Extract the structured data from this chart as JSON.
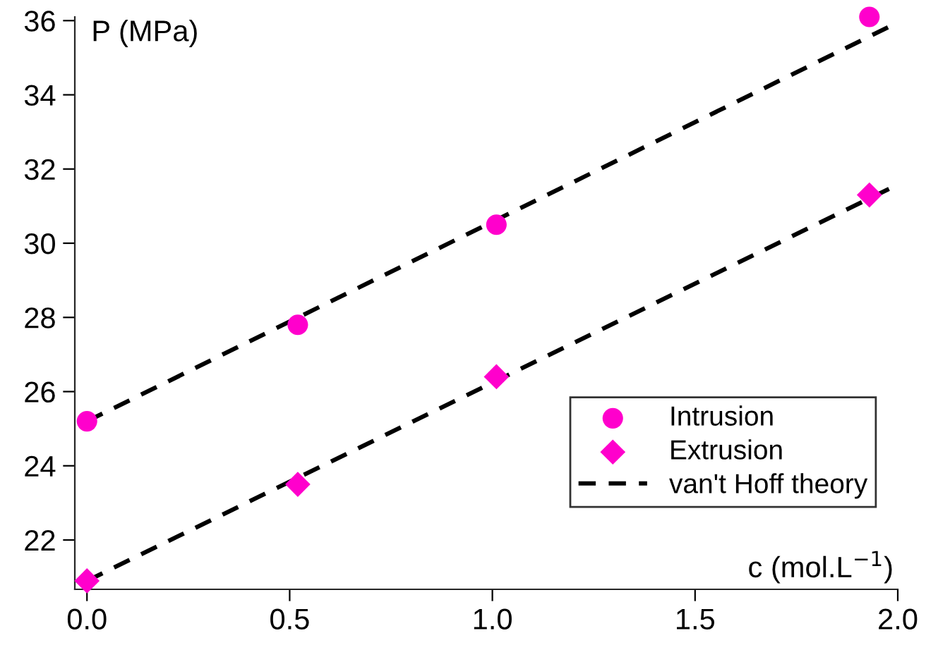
{
  "chart_data": {
    "type": "scatter",
    "xlabel": "c (mol.L$^{−1}$)",
    "ylabel": "P (MPa)",
    "xlim": [
      -0.03,
      2.0
    ],
    "xticks": [
      {
        "value": 0,
        "label": "0.0"
      },
      0.5,
      {
        "value": 1,
        "label": "1.0"
      },
      1.5,
      {
        "value": 2,
        "label": "2.0"
      }
    ],
    "ylim": [
      20.67,
      36.1
    ],
    "yticks": [
      22,
      24,
      26,
      28,
      30,
      32,
      34,
      36
    ],
    "grid": false,
    "legend": "bottom right",
    "series": [
      {
        "name": "Intrusion",
        "marker": "circle",
        "color": "#ff00cc",
        "x": [
          0.0,
          0.52,
          1.01,
          1.93
        ],
        "values": [
          25.2,
          27.8,
          30.5,
          36.1
        ]
      },
      {
        "name": "Extrusion",
        "marker": "diamond",
        "color": "#ff00cc",
        "x": [
          0.0,
          0.52,
          1.01,
          1.93
        ],
        "values": [
          20.9,
          23.5,
          26.4,
          31.3
        ]
      },
      {
        "name": "van't Hoff theory",
        "type": "line",
        "line_style": "dashed",
        "color": "#000000",
        "x": [
          0.0,
          2.0
        ],
        "values": [
          25.2,
          35.95
        ]
      },
      {
        "type": "line",
        "line_style": "dashed",
        "color": "#000000",
        "x": [
          0.0,
          2.0
        ],
        "values": [
          20.9,
          31.58
        ]
      }
    ]
  }
}
